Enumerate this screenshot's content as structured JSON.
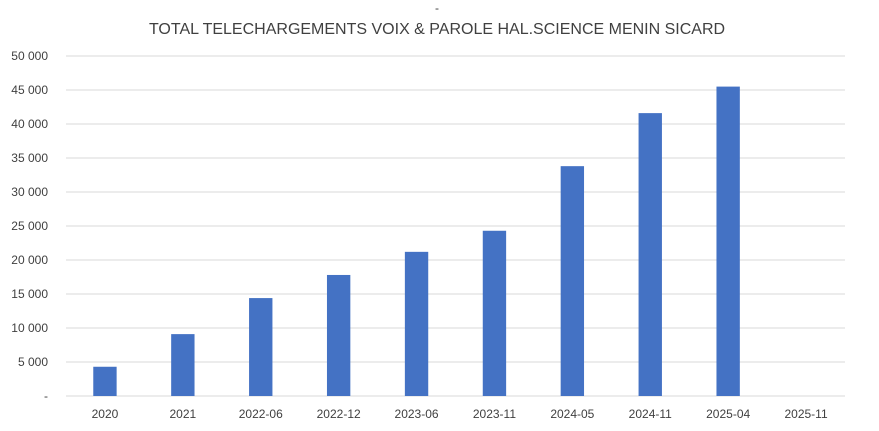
{
  "chart_data": {
    "type": "bar",
    "subtitle": "-",
    "title": "TOTAL TELECHARGEMENTS VOIX & PAROLE HAL.SCIENCE MENIN SICARD",
    "xlabel": "",
    "ylabel": "",
    "categories": [
      "2020",
      "2021",
      "2022-06",
      "2022-12",
      "2023-06",
      "2023-11",
      "2024-05",
      "2024-11",
      "2025-04",
      "2025-11"
    ],
    "values": [
      4300,
      9100,
      14400,
      17800,
      21200,
      24300,
      33800,
      41600,
      45500,
      null
    ],
    "ylim": [
      0,
      50000
    ],
    "yticks": [
      0,
      5000,
      10000,
      15000,
      20000,
      25000,
      30000,
      35000,
      40000,
      45000,
      50000
    ],
    "ytick_labels": [
      "-",
      "5 000",
      "10 000",
      "15 000",
      "20 000",
      "25 000",
      "30 000",
      "35 000",
      "40 000",
      "45 000",
      "50 000"
    ],
    "grid": true,
    "legend": "none",
    "colors": {
      "bar": "#4472c4"
    }
  }
}
